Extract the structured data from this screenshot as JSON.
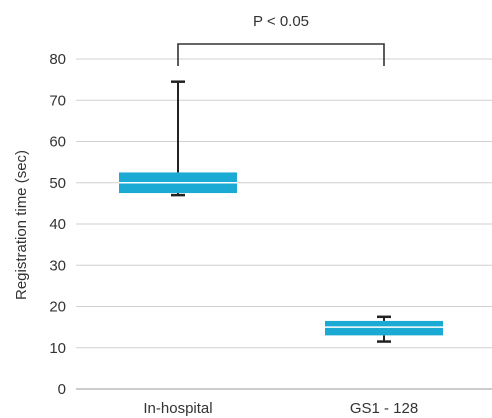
{
  "chart_data": {
    "type": "box",
    "title": "",
    "xlabel": "",
    "ylabel": "Registration time (sec)",
    "ylim": [
      0,
      80
    ],
    "yticks": [
      0,
      10,
      20,
      30,
      40,
      50,
      60,
      70,
      80
    ],
    "grid": true,
    "categories": [
      "In-hospital",
      "GS1 - 128"
    ],
    "boxes": [
      {
        "category": "In-hospital",
        "min": 47,
        "q1": 47.5,
        "median": 50,
        "q3": 52.5,
        "max": 74.5
      },
      {
        "category": "GS1 - 128",
        "min": 11.5,
        "q1": 13,
        "median": 15,
        "q3": 16.5,
        "max": 17.5
      }
    ],
    "box_color": "#1aaad4",
    "annotation": {
      "text": "P < 0.05",
      "between": [
        "In-hospital",
        "GS1 - 128"
      ]
    }
  }
}
